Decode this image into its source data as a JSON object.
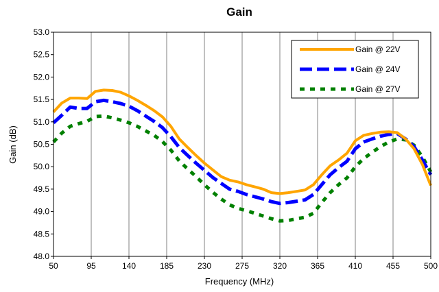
{
  "chart_data": {
    "type": "line",
    "title": "Gain",
    "xlabel": "Frequency (MHz)",
    "ylabel": "Gain (dB)",
    "xlim": [
      50,
      500
    ],
    "ylim": [
      48.0,
      53.0
    ],
    "x_ticks": [
      "50",
      "95",
      "140",
      "185",
      "230",
      "275",
      "320",
      "365",
      "410",
      "455",
      "500"
    ],
    "y_ticks": [
      "48.0",
      "48.5",
      "49.0",
      "49.5",
      "50.0",
      "50.5",
      "51.0",
      "51.5",
      "52.0",
      "52.5",
      "53.0"
    ],
    "grid": "vertical",
    "legend_position": "top-right",
    "series": [
      {
        "name": "Gain @ 22V",
        "color": "#ffa500",
        "style": "solid",
        "x": [
          50,
          60,
          70,
          80,
          90,
          100,
          110,
          120,
          130,
          140,
          150,
          160,
          170,
          180,
          190,
          200,
          210,
          220,
          230,
          240,
          250,
          260,
          270,
          280,
          290,
          300,
          310,
          320,
          330,
          340,
          350,
          360,
          370,
          380,
          390,
          400,
          410,
          420,
          430,
          440,
          450,
          460,
          470,
          480,
          490,
          500
        ],
        "values": [
          51.22,
          51.42,
          51.53,
          51.53,
          51.52,
          51.68,
          51.71,
          51.7,
          51.66,
          51.58,
          51.48,
          51.37,
          51.25,
          51.11,
          50.9,
          50.62,
          50.43,
          50.25,
          50.08,
          49.93,
          49.78,
          49.7,
          49.66,
          49.6,
          49.55,
          49.5,
          49.42,
          49.4,
          49.42,
          49.45,
          49.48,
          49.6,
          49.82,
          50.02,
          50.15,
          50.3,
          50.58,
          50.7,
          50.74,
          50.77,
          50.78,
          50.76,
          50.62,
          50.4,
          50.05,
          49.58
        ]
      },
      {
        "name": "Gain @ 24V",
        "color": "#0000ff",
        "style": "dashed",
        "x": [
          50,
          60,
          70,
          80,
          90,
          100,
          110,
          120,
          130,
          140,
          150,
          160,
          170,
          180,
          190,
          200,
          210,
          220,
          230,
          240,
          250,
          260,
          270,
          280,
          290,
          300,
          310,
          320,
          330,
          340,
          350,
          360,
          370,
          380,
          390,
          400,
          410,
          420,
          430,
          440,
          450,
          460,
          470,
          480,
          490,
          500
        ],
        "values": [
          50.98,
          51.15,
          51.33,
          51.3,
          51.3,
          51.45,
          51.48,
          51.45,
          51.41,
          51.35,
          51.25,
          51.13,
          51.01,
          50.87,
          50.67,
          50.43,
          50.25,
          50.08,
          49.92,
          49.76,
          49.63,
          49.5,
          49.45,
          49.38,
          49.33,
          49.28,
          49.22,
          49.18,
          49.2,
          49.23,
          49.26,
          49.38,
          49.6,
          49.82,
          49.98,
          50.12,
          50.4,
          50.55,
          50.62,
          50.68,
          50.72,
          50.74,
          50.62,
          50.45,
          50.15,
          49.82
        ]
      },
      {
        "name": "Gain @ 27V",
        "color": "#008000",
        "style": "dotted",
        "x": [
          50,
          60,
          70,
          80,
          90,
          100,
          110,
          120,
          130,
          140,
          150,
          160,
          170,
          180,
          190,
          200,
          210,
          220,
          230,
          240,
          250,
          260,
          270,
          280,
          290,
          300,
          310,
          320,
          330,
          340,
          350,
          360,
          370,
          380,
          390,
          400,
          410,
          420,
          430,
          440,
          450,
          460,
          470,
          480,
          490,
          500
        ],
        "values": [
          50.55,
          50.75,
          50.9,
          50.96,
          51.01,
          51.12,
          51.13,
          51.09,
          51.04,
          50.98,
          50.9,
          50.8,
          50.7,
          50.56,
          50.37,
          50.13,
          49.95,
          49.78,
          49.6,
          49.43,
          49.28,
          49.15,
          49.07,
          49.02,
          48.96,
          48.9,
          48.84,
          48.79,
          48.8,
          48.84,
          48.87,
          48.96,
          49.2,
          49.42,
          49.6,
          49.75,
          50.0,
          50.18,
          50.32,
          50.45,
          50.55,
          50.62,
          50.6,
          50.48,
          50.22,
          49.88
        ]
      }
    ]
  }
}
